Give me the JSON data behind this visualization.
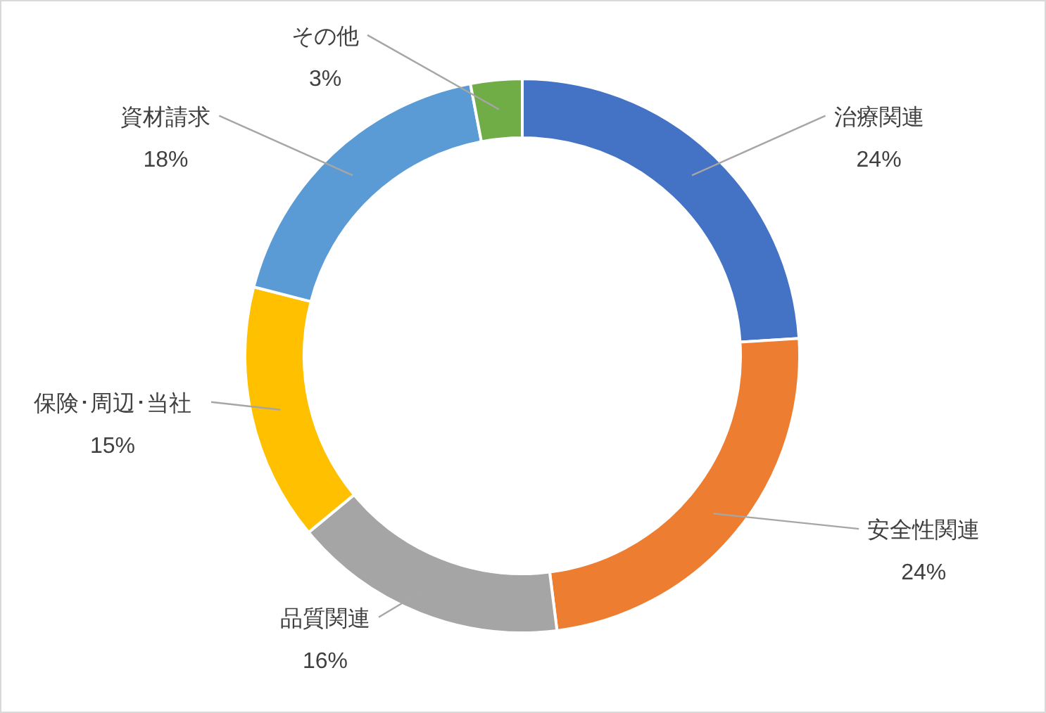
{
  "chart_data": {
    "type": "donut",
    "categories": [
      "治療関連",
      "安全性関連",
      "品質関連",
      "保険･周辺･当社",
      "資材請求",
      "その他"
    ],
    "values": [
      24,
      24,
      16,
      15,
      18,
      3
    ],
    "value_labels": [
      "24%",
      "24%",
      "16%",
      "15%",
      "18%",
      "3%"
    ],
    "colors": [
      "#4472c4",
      "#ed7d31",
      "#a5a5a5",
      "#ffc000",
      "#5b9bd5",
      "#70ad47"
    ]
  }
}
